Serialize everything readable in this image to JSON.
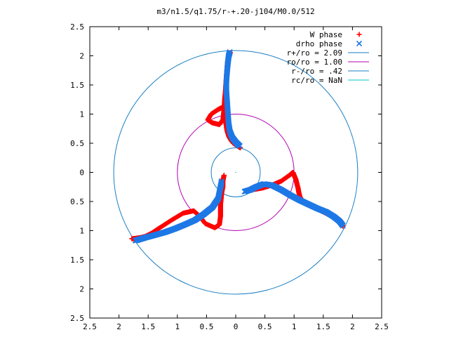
{
  "chart_data": {
    "type": "scatter",
    "title": "m3/n1.5/q1.75/r-+.20-j104/M0.0/512",
    "xlabel": "",
    "ylabel": "",
    "xlim": [
      -2.5,
      2.5
    ],
    "ylim": [
      -2.5,
      2.5
    ],
    "grid": false,
    "legend_position": "top-right",
    "x_ticks": [
      "2.5",
      "2",
      "1.5",
      "1",
      "0.5",
      "0",
      "0.5",
      "1",
      "1.5",
      "2",
      "2.5"
    ],
    "y_ticks": [
      "2.5",
      "2",
      "1.5",
      "1",
      "0.5",
      "0",
      "0.5",
      "1",
      "1.5",
      "2",
      "2.5"
    ],
    "circles": [
      {
        "name": "r+/ro = 2.09",
        "radius": 2.09,
        "color": "#1a7fc4"
      },
      {
        "name": "ro/ro = 1.00",
        "radius": 1.0,
        "color": "#b000b0"
      },
      {
        "name": "r-/ro = .42",
        "radius": 0.42,
        "color": "#1a7fc4"
      },
      {
        "name": "rc/ro = NaN",
        "radius": null,
        "color": "#00c8c8"
      }
    ],
    "series": [
      {
        "name": "W phase",
        "marker": "+",
        "color": "#ff0000",
        "x": [
          0.08,
          0.02,
          -0.04,
          -0.08,
          -0.12,
          -0.15,
          -0.17,
          -0.18,
          -0.2,
          -0.22,
          -0.3,
          -0.42,
          -0.48,
          -0.4,
          -0.28,
          -0.22,
          -0.2,
          -0.19,
          -0.18,
          -0.17,
          -0.16,
          -0.15,
          -0.14,
          -0.12,
          -0.09,
          0.28,
          0.45,
          0.62,
          0.78,
          0.92,
          0.98,
          1.0,
          1.03,
          1.05,
          1.07,
          1.08,
          1.1,
          1.15,
          1.25,
          1.38,
          1.5,
          1.62,
          1.72,
          1.8,
          1.84,
          -0.2,
          -0.22,
          -0.22,
          -0.24,
          -0.25,
          -0.26,
          -0.26,
          -0.26,
          -0.28,
          -0.36,
          -0.52,
          -0.62,
          -0.72,
          -0.9,
          -1.1,
          -1.3,
          -1.45,
          -1.55,
          -1.63,
          -1.7,
          -1.78
        ],
        "y": [
          0.42,
          0.46,
          0.5,
          0.55,
          0.62,
          0.72,
          0.85,
          0.95,
          1.05,
          1.12,
          1.08,
          1.0,
          0.9,
          0.85,
          0.82,
          0.9,
          1.1,
          1.25,
          1.35,
          1.5,
          1.65,
          1.78,
          1.9,
          2.0,
          2.06,
          -0.3,
          -0.27,
          -0.22,
          -0.15,
          -0.05,
          0.0,
          -0.05,
          -0.12,
          -0.2,
          -0.28,
          -0.34,
          -0.42,
          -0.5,
          -0.56,
          -0.62,
          -0.68,
          -0.74,
          -0.8,
          -0.86,
          -0.93,
          -0.05,
          -0.15,
          -0.25,
          -0.35,
          -0.45,
          -0.55,
          -0.65,
          -0.75,
          -0.9,
          -0.95,
          -0.88,
          -0.75,
          -0.66,
          -0.7,
          -0.82,
          -0.95,
          -1.05,
          -1.1,
          -1.12,
          -1.13,
          -1.14
        ]
      },
      {
        "name": "drho phase",
        "marker": "x",
        "color": "#1e78e6",
        "x": [
          0.07,
          0.0,
          -0.06,
          -0.1,
          -0.12,
          -0.13,
          -0.14,
          -0.15,
          -0.16,
          -0.16,
          -0.15,
          -0.14,
          -0.13,
          -0.12,
          -0.1,
          0.15,
          0.25,
          0.35,
          0.48,
          0.62,
          0.78,
          0.95,
          1.1,
          1.25,
          1.4,
          1.55,
          1.68,
          1.78,
          1.84,
          -0.24,
          -0.27,
          -0.3,
          -0.4,
          -0.55,
          -0.7,
          -0.88,
          -1.05,
          -1.22,
          -1.4,
          -1.55,
          -1.65,
          -1.72
        ],
        "y": [
          0.45,
          0.52,
          0.6,
          0.7,
          0.82,
          0.95,
          1.1,
          1.25,
          1.4,
          1.55,
          1.7,
          1.82,
          1.92,
          2.0,
          2.07,
          -0.33,
          -0.3,
          -0.25,
          -0.2,
          -0.22,
          -0.3,
          -0.4,
          -0.48,
          -0.55,
          -0.62,
          -0.68,
          -0.76,
          -0.84,
          -0.92,
          -0.15,
          -0.3,
          -0.45,
          -0.6,
          -0.72,
          -0.82,
          -0.9,
          -0.97,
          -1.03,
          -1.08,
          -1.12,
          -1.15,
          -1.17
        ]
      }
    ]
  }
}
